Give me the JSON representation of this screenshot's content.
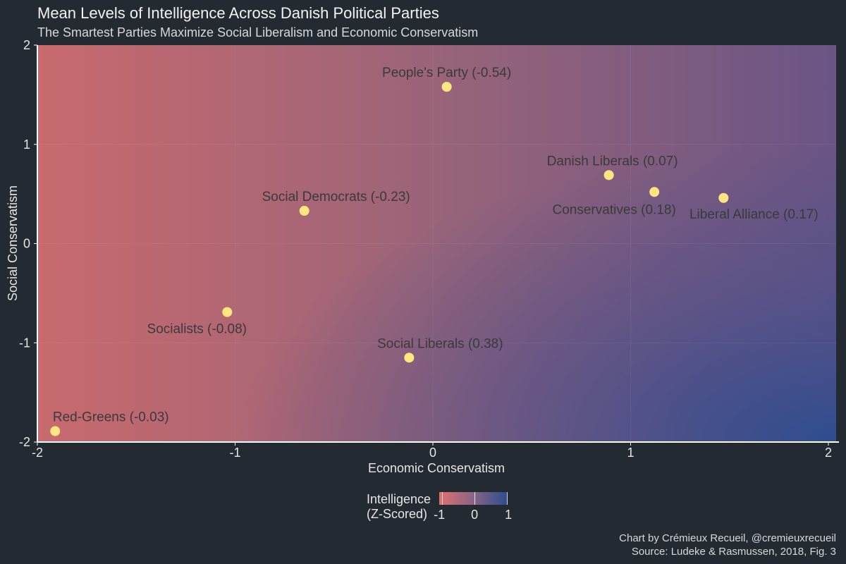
{
  "chart_data": {
    "type": "scatter",
    "title": "Mean Levels of Intelligence Across Danish Political Parties",
    "subtitle": "The Smartest Parties Maximize Social Liberalism and Economic Conservatism",
    "xlabel": "Economic Conservatism",
    "ylabel": "Social Conservatism",
    "xlim": [
      -2,
      2
    ],
    "ylim": [
      -2,
      2
    ],
    "xticks": [
      "-2",
      "-1",
      "0",
      "1",
      "2"
    ],
    "yticks": [
      "2",
      "1",
      "0",
      "-1",
      "-2"
    ],
    "points": [
      {
        "name": "People's Party (-0.54)",
        "x": 0.07,
        "y": 1.58,
        "iq": -0.54
      },
      {
        "name": "Danish Liberals (0.07)",
        "x": 0.89,
        "y": 0.69,
        "iq": 0.07
      },
      {
        "name": "Conservatives (0.18)",
        "x": 1.12,
        "y": 0.52,
        "iq": 0.18
      },
      {
        "name": "Liberal Alliance (0.17)",
        "x": 1.47,
        "y": 0.46,
        "iq": 0.17
      },
      {
        "name": "Social Democrats (-0.23)",
        "x": -0.65,
        "y": 0.33,
        "iq": -0.23
      },
      {
        "name": "Socialists (-0.08)",
        "x": -1.04,
        "y": -0.69,
        "iq": -0.08
      },
      {
        "name": "Social Liberals (0.38)",
        "x": -0.12,
        "y": -1.15,
        "iq": 0.38
      },
      {
        "name": "Red-Greens (-0.03)",
        "x": -1.91,
        "y": -1.89,
        "iq": -0.03
      }
    ],
    "legend": {
      "title_line1": "Intelligence",
      "title_line2": "(Z-Scored)",
      "ticks": [
        "-1",
        "0",
        "1"
      ],
      "low_color": "#e07070",
      "high_color": "#2e4d8f"
    },
    "point_color": "#ffe680"
  },
  "caption": {
    "line1": "Chart by Crémieux Recueil, @cremieuxrecueil",
    "line2": "Source: Ludeke & Rasmussen, 2018, Fig. 3"
  }
}
